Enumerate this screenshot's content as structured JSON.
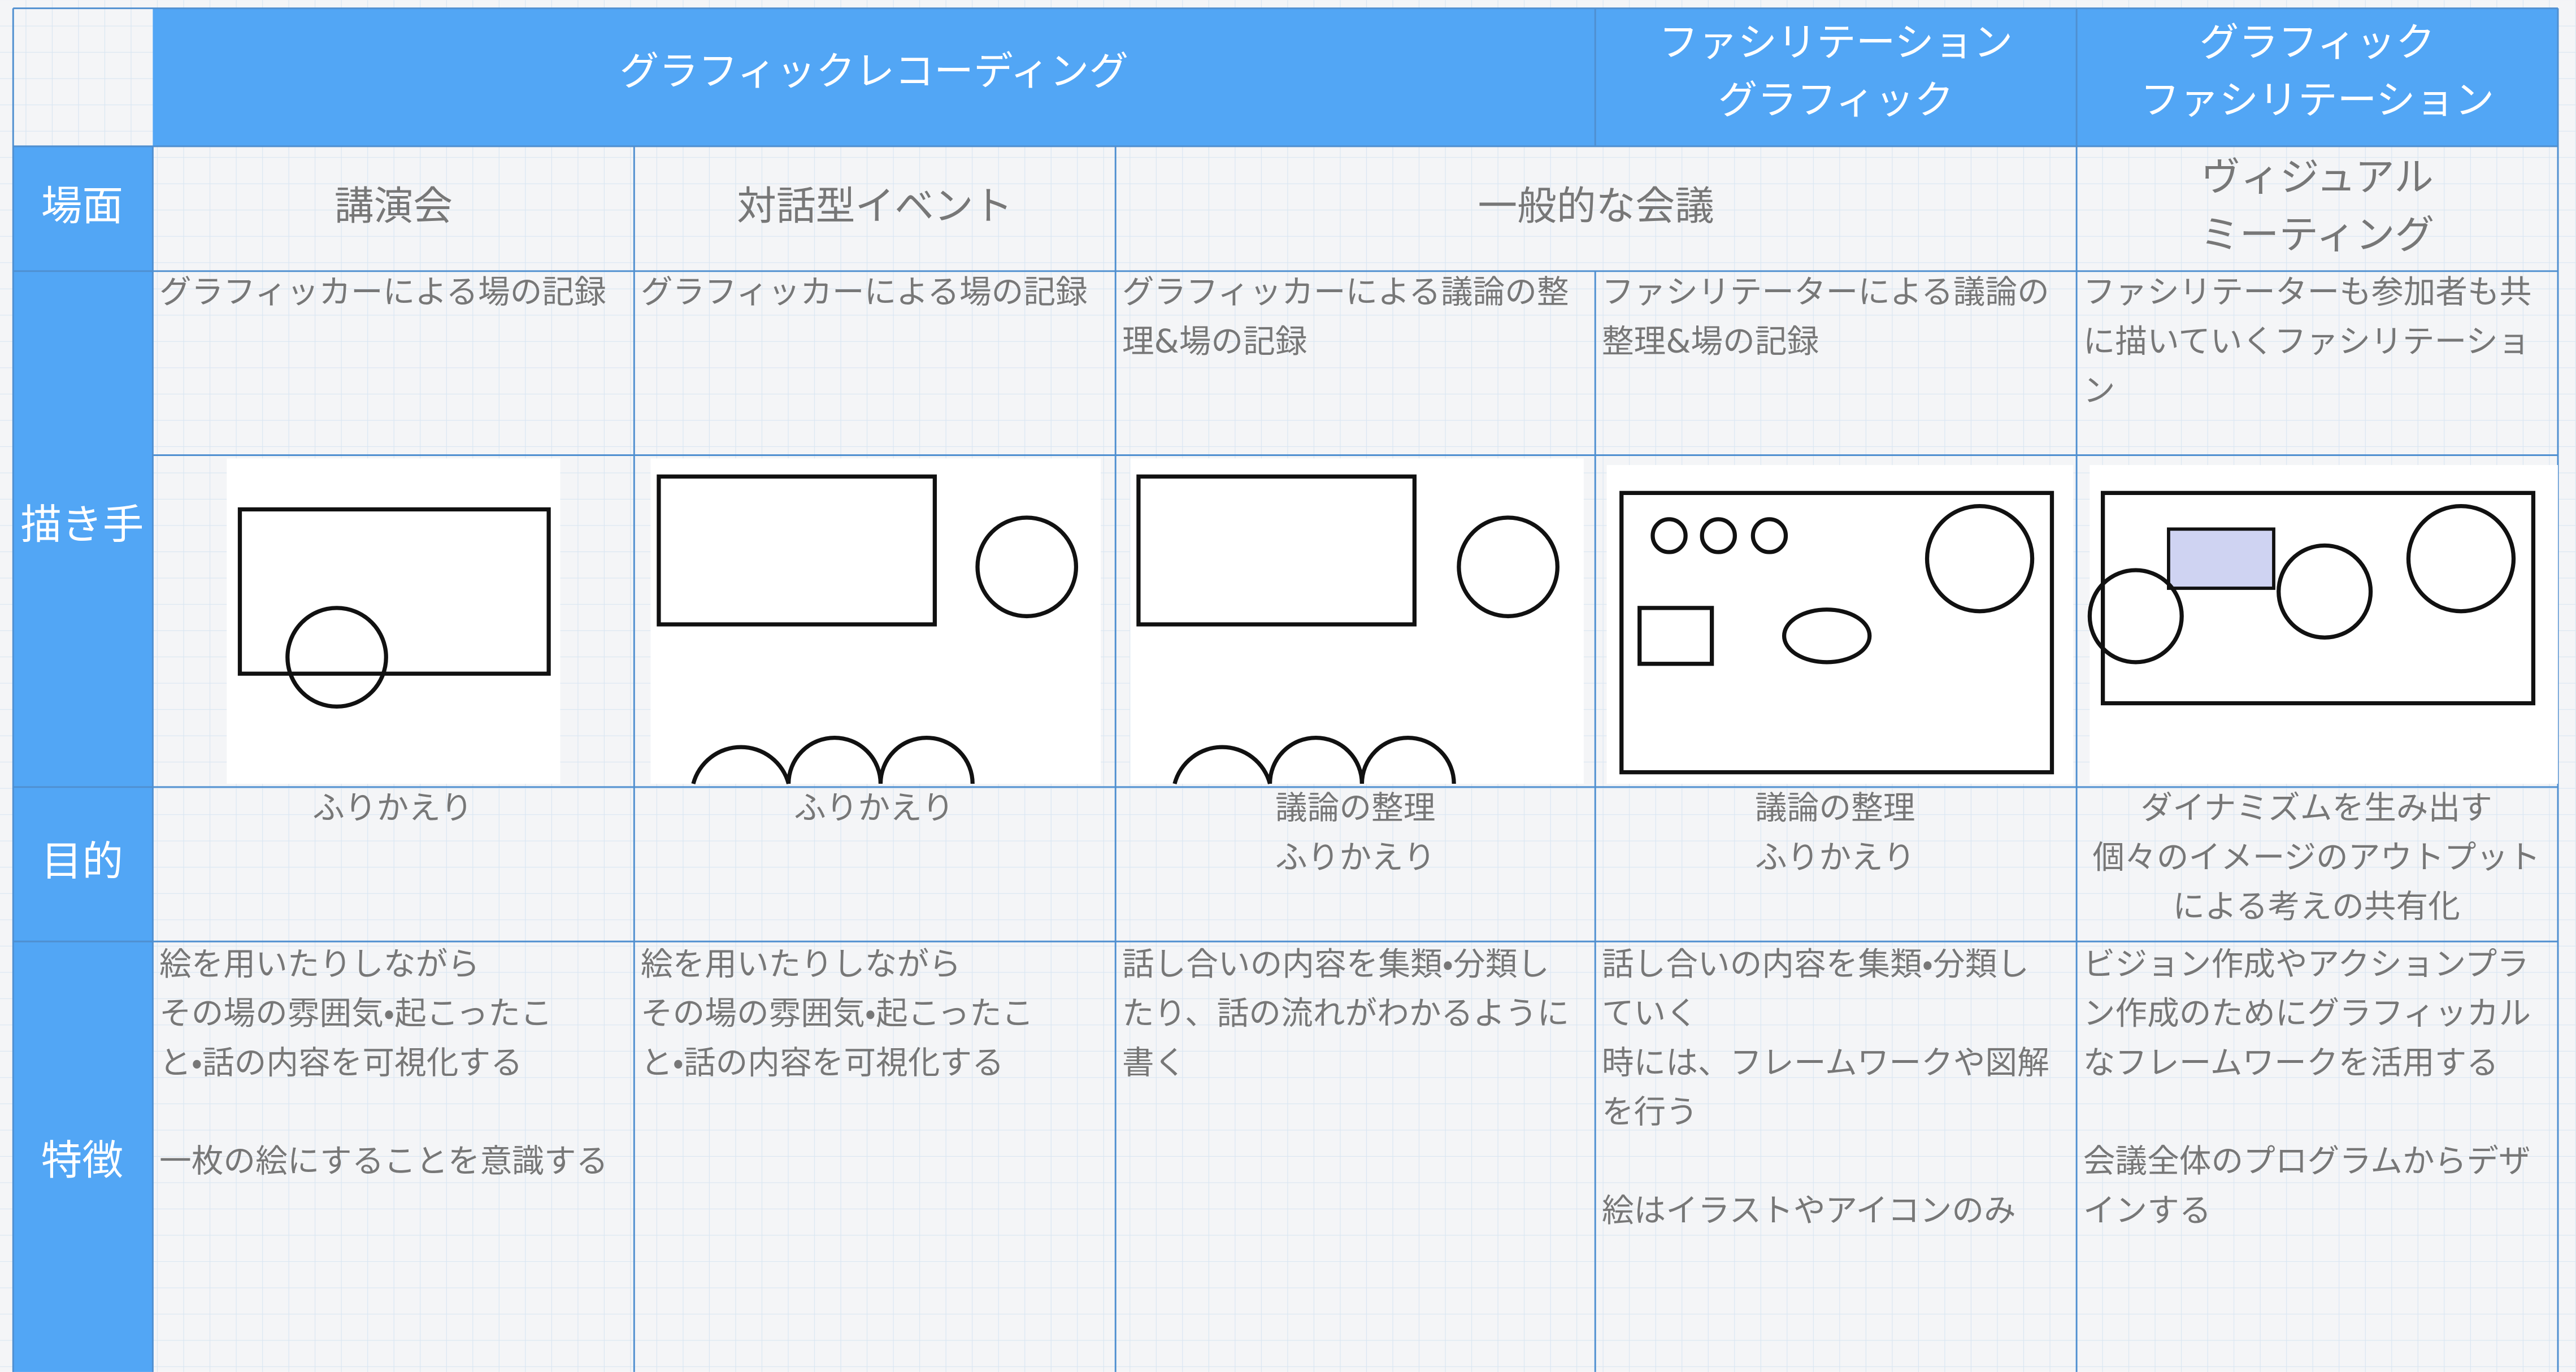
{
  "header": {
    "columns": [
      {
        "lines": [
          "グラフィックレコーディング"
        ]
      },
      {
        "lines": [
          "ファシリテーション",
          "グラフィック"
        ]
      },
      {
        "lines": [
          "グラフィック",
          "ファシリテーション"
        ]
      }
    ]
  },
  "row_labels": [
    "場面",
    "描き手",
    "目的",
    "特徴"
  ],
  "scenes": [
    {
      "lines": [
        "講演会"
      ]
    },
    {
      "lines": [
        "対話型イベント"
      ]
    },
    {
      "lines": [
        "一般的な会議"
      ]
    },
    {
      "lines": [
        "ヴィジュアル",
        "ミーティング"
      ]
    }
  ],
  "drawers": [
    {
      "lines": [
        "グラフィッカーによる場の記録"
      ]
    },
    {
      "lines": [
        "グラフィッカーによる場の記録"
      ]
    },
    {
      "lines": [
        "グラフィッカーによる議論の整",
        "理&場の記録"
      ]
    },
    {
      "lines": [
        "ファシリテーターによる議論の",
        "整理&場の記録"
      ]
    },
    {
      "lines": [
        "ファシリテーターも参加者も共",
        "に描いていくファシリテーショ",
        "ン"
      ]
    }
  ],
  "purposes": [
    {
      "lines": [
        "ふりかえり"
      ]
    },
    {
      "lines": [
        "ふりかえり"
      ]
    },
    {
      "lines": [
        "議論の整理",
        "ふりかえり"
      ]
    },
    {
      "lines": [
        "議論の整理",
        "ふりかえり"
      ]
    },
    {
      "lines": [
        "ダイナミズムを生み出す",
        "個々のイメージのアウトプット",
        "による考えの共有化"
      ]
    }
  ],
  "features": [
    {
      "paragraphs": [
        [
          "絵を用いたりしながら",
          "その場の雰囲気・起こったこ",
          "と・話の内容を可視化する"
        ],
        [
          "一枚の絵にすることを意識する"
        ]
      ]
    },
    {
      "paragraphs": [
        [
          "絵を用いたりしながら",
          "その場の雰囲気・起こったこ",
          "と・話の内容を可視化する"
        ]
      ]
    },
    {
      "paragraphs": [
        [
          "話し合いの内容を集類・分類し",
          "たり、話の流れがわかるように",
          "書く"
        ]
      ]
    },
    {
      "paragraphs": [
        [
          "話し合いの内容を集類・分類し",
          "ていく",
          "時には、フレームワークや図解",
          "を行う"
        ],
        [
          "絵はイラストやアイコンのみ"
        ]
      ]
    },
    {
      "paragraphs": [
        [
          "ビジョン作成やアクションプラ",
          "ン作成のためにグラフィッカル",
          "なフレームワークを活用する"
        ],
        [
          "会議全体のプログラムからデザ",
          "インする"
        ]
      ]
    }
  ]
}
